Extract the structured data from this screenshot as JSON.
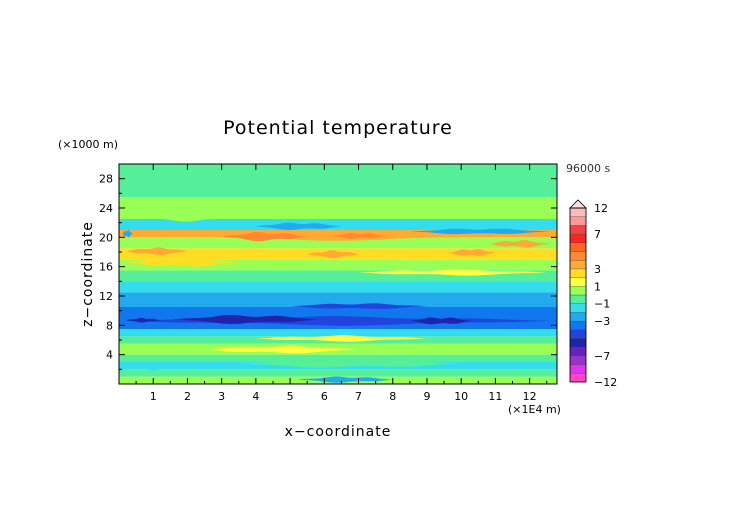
{
  "chart_data": {
    "type": "heatmap",
    "title": "Potential temperature",
    "time_label": "96000 s",
    "xlabel": "x−coordinate",
    "ylabel": "z−coordinate",
    "x_unit": "(×1E4 m)",
    "y_unit": "(×1000 m)",
    "xlim": [
      0,
      12.8
    ],
    "ylim": [
      0,
      30
    ],
    "x_ticks": [
      "1",
      "2",
      "3",
      "4",
      "5",
      "6",
      "7",
      "8",
      "9",
      "10",
      "11",
      "12"
    ],
    "y_ticks": [
      "4",
      "8",
      "12",
      "16",
      "20",
      "24",
      "28"
    ],
    "colorbar": {
      "levels": [
        -12,
        -9,
        -8,
        -7,
        -6,
        -5,
        -4,
        -3,
        -2,
        -1,
        0,
        1,
        2,
        3,
        4,
        5,
        6,
        7,
        8,
        12
      ],
      "tick_labels": [
        "12",
        "7",
        "3",
        "1",
        "−1",
        "−3",
        "−7",
        "−12"
      ],
      "colors": [
        "#ff44c8",
        "#dd33ee",
        "#9933cc",
        "#6622bb",
        "#2222aa",
        "#2244dd",
        "#1177ee",
        "#22aaee",
        "#33ddee",
        "#55ee99",
        "#99ff55",
        "#ffff44",
        "#ffdd22",
        "#ffaa33",
        "#ff8833",
        "#ff6622",
        "#ff2222",
        "#ee4444",
        "#ff9999",
        "#ffbbbb"
      ]
    },
    "bands": [
      {
        "z": [
          0.0,
          1.0
        ],
        "value": 0.5
      },
      {
        "z": [
          1.0,
          2.0
        ],
        "value": -0.5
      },
      {
        "z": [
          2.0,
          3.0
        ],
        "value": -1.5
      },
      {
        "z": [
          3.0,
          4.0
        ],
        "value": -0.5
      },
      {
        "z": [
          4.0,
          5.5
        ],
        "value": 0.5
      },
      {
        "z": [
          5.5,
          6.5
        ],
        "value": -0.5
      },
      {
        "z": [
          6.5,
          7.5
        ],
        "value": -1.5
      },
      {
        "z": [
          7.5,
          10.5
        ],
        "value": -3.5
      },
      {
        "z": [
          10.5,
          12.5
        ],
        "value": -2.5
      },
      {
        "z": [
          12.5,
          14.0
        ],
        "value": -1.5
      },
      {
        "z": [
          14.0,
          15.5
        ],
        "value": -0.5
      },
      {
        "z": [
          15.5,
          17.0
        ],
        "value": 0.5
      },
      {
        "z": [
          17.0,
          18.5
        ],
        "value": 2.5
      },
      {
        "z": [
          18.5,
          20.0
        ],
        "value": 0.5
      },
      {
        "z": [
          20.0,
          21.0
        ],
        "value": 3.5
      },
      {
        "z": [
          21.0,
          22.5
        ],
        "value": -1.5
      },
      {
        "z": [
          22.5,
          25.5
        ],
        "value": 0.5
      },
      {
        "z": [
          25.5,
          30.0
        ],
        "value": -0.5
      }
    ],
    "features": [
      {
        "x": [
          0.5,
          12.6
        ],
        "z": [
          19.6,
          21.0
        ],
        "value": 3.5
      },
      {
        "x": [
          3.0,
          5.5
        ],
        "z": [
          19.5,
          20.7
        ],
        "value": 4.5
      },
      {
        "x": [
          6.2,
          7.8
        ],
        "z": [
          19.8,
          20.6
        ],
        "value": 4.5
      },
      {
        "x": [
          9.6,
          11.0
        ],
        "z": [
          17.4,
          18.4
        ],
        "value": 3.5
      },
      {
        "x": [
          10.8,
          12.6
        ],
        "z": [
          18.6,
          19.6
        ],
        "value": 3.5
      },
      {
        "x": [
          0.2,
          2.0
        ],
        "z": [
          17.6,
          18.6
        ],
        "value": 3.5
      },
      {
        "x": [
          5.5,
          7.0
        ],
        "z": [
          17.2,
          18.2
        ],
        "value": 3.5
      },
      {
        "x": [
          0.3,
          4.0
        ],
        "z": [
          22.2,
          23.6
        ],
        "value": 0.5
      },
      {
        "x": [
          4.0,
          6.5
        ],
        "z": [
          21.0,
          22.0
        ],
        "value": -2.5
      },
      {
        "x": [
          8.5,
          12.6
        ],
        "z": [
          20.4,
          21.2
        ],
        "value": -2.5
      },
      {
        "x": [
          0.2,
          3.5
        ],
        "z": [
          16.0,
          17.2
        ],
        "value": 2.5
      },
      {
        "x": [
          7.0,
          12.5
        ],
        "z": [
          14.8,
          15.6
        ],
        "value": 1.5
      },
      {
        "x": [
          0.2,
          12.6
        ],
        "z": [
          8.0,
          9.2
        ],
        "value": -4.5
      },
      {
        "x": [
          0.2,
          1.2
        ],
        "z": [
          8.4,
          9.0
        ],
        "value": -5.5
      },
      {
        "x": [
          1.6,
          5.8
        ],
        "z": [
          8.2,
          9.4
        ],
        "value": -5.5
      },
      {
        "x": [
          8.5,
          10.3
        ],
        "z": [
          8.1,
          9.1
        ],
        "value": -5.5
      },
      {
        "x": [
          5.0,
          9.0
        ],
        "z": [
          10.2,
          11.0
        ],
        "value": -4.5
      },
      {
        "x": [
          2.5,
          7.0
        ],
        "z": [
          4.2,
          5.2
        ],
        "value": 1.5
      },
      {
        "x": [
          4.0,
          9.0
        ],
        "z": [
          5.8,
          6.6
        ],
        "value": 1.5
      },
      {
        "x": [
          0.8,
          1.2
        ],
        "z": [
          1.8,
          2.6
        ],
        "value": -1.5
      },
      {
        "x": [
          5.2,
          8.0
        ],
        "z": [
          0.2,
          1.0
        ],
        "value": -2.5
      },
      {
        "x": [
          3.5,
          10.0
        ],
        "z": [
          2.2,
          3.4
        ],
        "value": -0.5
      },
      {
        "x": [
          8.8,
          12.6
        ],
        "z": [
          26.0,
          30.0
        ],
        "value": -0.5
      },
      {
        "x": [
          0.1,
          0.4
        ],
        "z": [
          20.0,
          21.0
        ],
        "value": -2.5
      }
    ]
  }
}
